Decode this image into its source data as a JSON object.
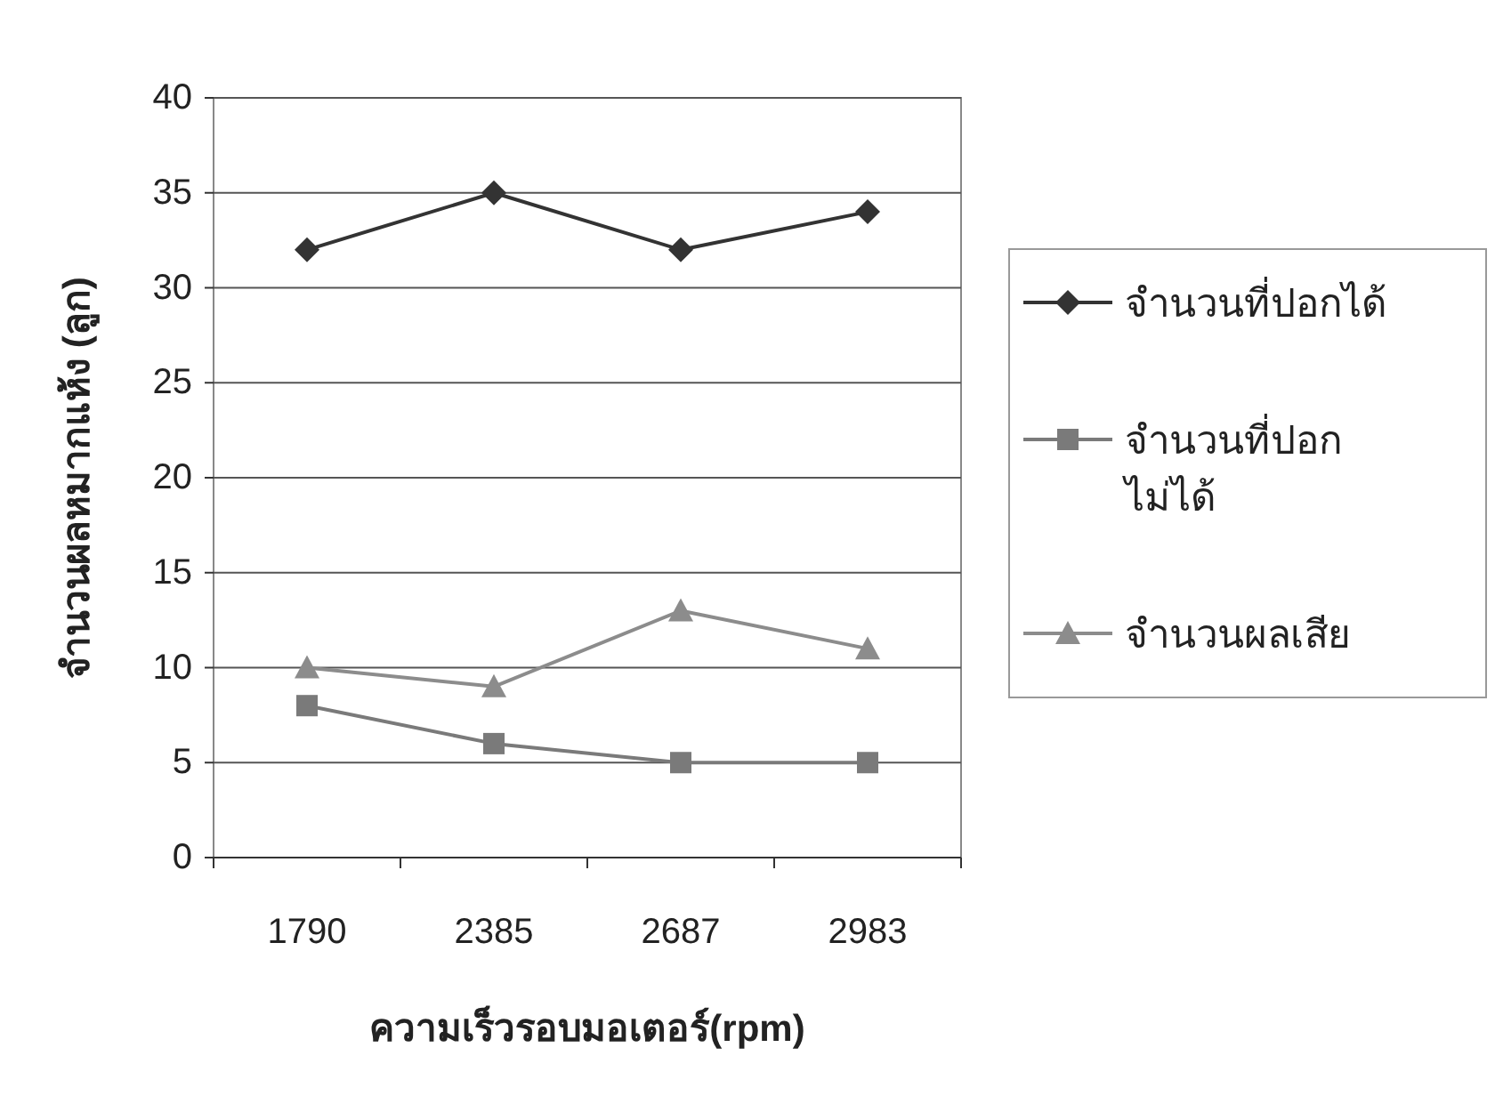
{
  "chart_data": {
    "type": "line",
    "xlabel": "ความเร็วรอบมอเตอร์(rpm)",
    "ylabel": "จำนวนผลหมากแห้ง (ลูก)",
    "categories": [
      "1790",
      "2385",
      "2687",
      "2983"
    ],
    "series": [
      {
        "name": "จำนวนที่ปอกได้",
        "color": "#333333",
        "marker": "diamond",
        "values": [
          32,
          35,
          32,
          34
        ]
      },
      {
        "name": "จำนวนที่ปอก ไม่ได้",
        "color": "#7a7a7a",
        "marker": "square",
        "values": [
          8,
          6,
          5,
          5
        ]
      },
      {
        "name": "จำนวนผลเสีย",
        "color": "#8c8c8c",
        "marker": "triangle",
        "values": [
          10,
          9,
          13,
          11
        ]
      }
    ],
    "ylim": [
      0,
      40
    ],
    "yticks": [
      0,
      5,
      10,
      15,
      20,
      25,
      30,
      35,
      40
    ],
    "grid": "y",
    "legend": "right"
  }
}
